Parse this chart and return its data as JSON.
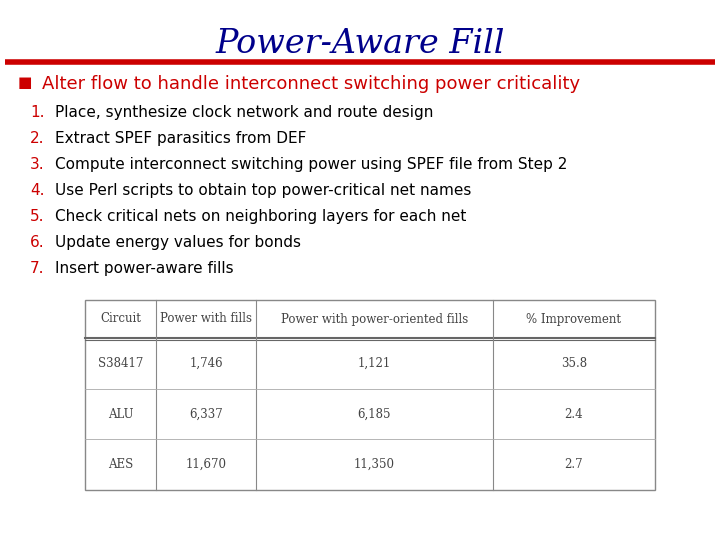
{
  "title": "Power-Aware Fill",
  "title_color": "#00008B",
  "title_fontsize": 24,
  "separator_color": "#CC0000",
  "bullet_text": "Alter flow to handle interconnect switching power criticality",
  "bullet_color": "#CC0000",
  "bullet_marker_color": "#CC0000",
  "numbered_items": [
    "Place, synthesize clock network and route design",
    "Extract SPEF parasitics from DEF",
    "Compute interconnect switching power using SPEF file from Step 2",
    "Use Perl scripts to obtain top power-critical net names",
    "Check critical nets on neighboring layers for each net",
    "Update energy values for bonds",
    "Insert power-aware fills"
  ],
  "numbered_color": "#CC0000",
  "text_color": "#000000",
  "background_color": "#FFFFFF",
  "table_headers": [
    "Circuit",
    "Power with fills",
    "Power with power-oriented fills",
    "% Improvement"
  ],
  "table_rows": [
    [
      "S38417",
      "1,746",
      "1,121",
      "35.8"
    ],
    [
      "ALU",
      "6,337",
      "6,185",
      "2.4"
    ],
    [
      "AES",
      "11,670",
      "11,350",
      "2.7"
    ]
  ]
}
